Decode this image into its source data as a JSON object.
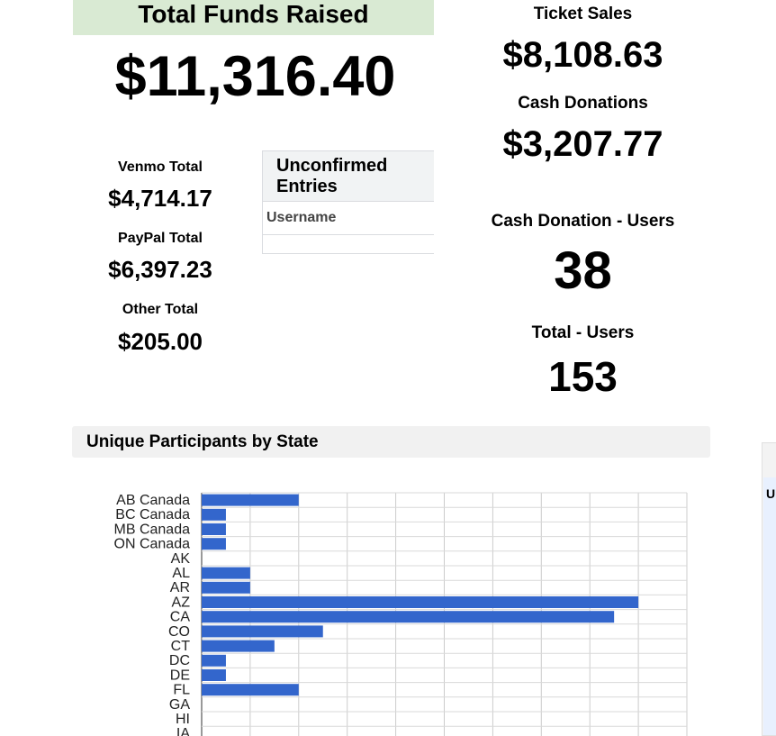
{
  "summary": {
    "title": "Total Funds Raised",
    "total": "$11,316.40",
    "venmo_label": "Venmo Total",
    "venmo_value": "$4,714.17",
    "paypal_label": "PayPal Total",
    "paypal_value": "$6,397.23",
    "other_label": "Other Total",
    "other_value": "$205.00"
  },
  "unconfirmed": {
    "title": "Unconfirmed Entries",
    "column": "Username"
  },
  "stats": {
    "ticket_label": "Ticket Sales",
    "ticket_value": "$8,108.63",
    "cash_label": "Cash Donations",
    "cash_value": "$3,207.77",
    "cash_users_label": "Cash Donation - Users",
    "cash_users_value": "38",
    "total_users_label": "Total - Users",
    "total_users_value": "153"
  },
  "right_panel": {
    "letter": "U"
  },
  "chart_data": {
    "type": "bar",
    "orientation": "horizontal",
    "title": "Unique Participants by State",
    "categories": [
      "AB Canada",
      "BC Canada",
      "MB Canada",
      "ON Canada",
      "AK",
      "AL",
      "AR",
      "AZ",
      "CA",
      "CO",
      "CT",
      "DC",
      "DE",
      "FL",
      "GA",
      "HI",
      "IA"
    ],
    "values": [
      4,
      1,
      1,
      1,
      0,
      2,
      2,
      18,
      17,
      5,
      3,
      1,
      1,
      4,
      0,
      0,
      0
    ],
    "xlim": [
      0,
      20
    ],
    "grid": true,
    "bar_color": "#3366cc"
  }
}
